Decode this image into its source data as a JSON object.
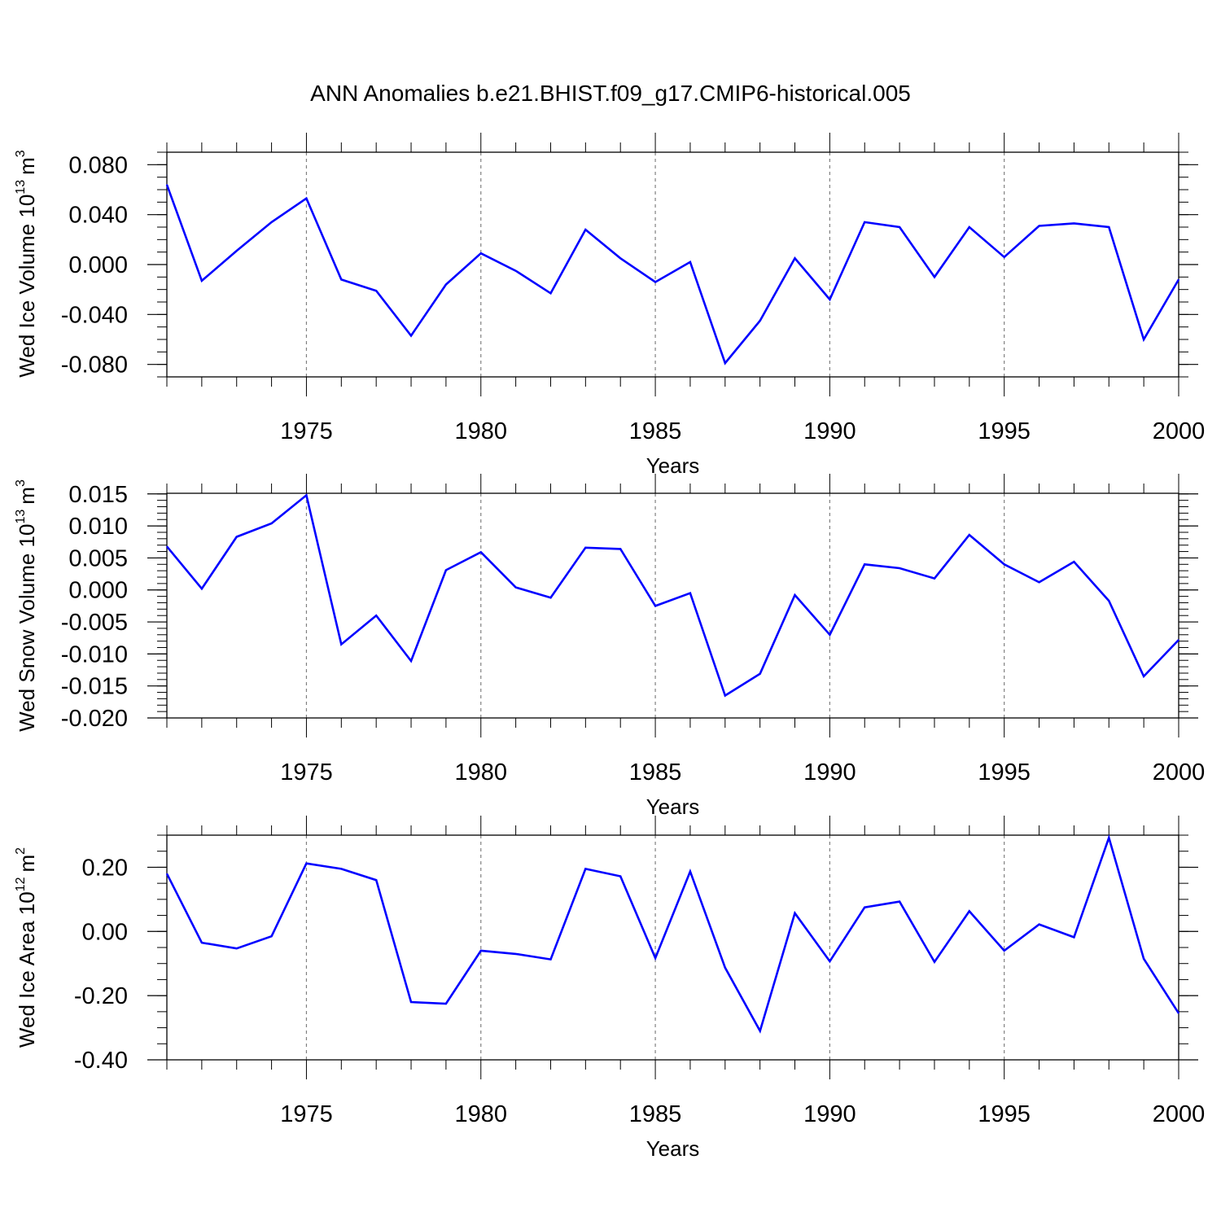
{
  "figure": {
    "title": "ANN Anomalies b.e21.BHIST.f09_g17.CMIP6-historical.005",
    "line_color": "#0000ff",
    "grid_color": "#808080"
  },
  "chart_data": [
    {
      "type": "line",
      "title": "",
      "xlabel": "Years",
      "ylabel_main": "Wed Ice Volume 10",
      "ylabel_exp": "13",
      "ylabel_unit": "m",
      "ylabel_unit_exp": "3",
      "xlim": [
        1971,
        2000
      ],
      "ylim": [
        -0.09,
        0.09
      ],
      "xticks": [
        1975,
        1980,
        1985,
        1990,
        1995,
        2000
      ],
      "xtick_labels": [
        "1975",
        "1980",
        "1985",
        "1990",
        "1995",
        "2000"
      ],
      "yticks": [
        0.08,
        0.04,
        0.0,
        -0.04,
        -0.08
      ],
      "ytick_labels": [
        "0.080",
        "0.040",
        "0.000",
        "-0.040",
        "-0.080"
      ],
      "yminor_step": 0.01,
      "x": [
        1971,
        1972,
        1973,
        1974,
        1975,
        1976,
        1977,
        1978,
        1979,
        1980,
        1981,
        1982,
        1983,
        1984,
        1985,
        1986,
        1987,
        1988,
        1989,
        1990,
        1991,
        1992,
        1993,
        1994,
        1995,
        1996,
        1997,
        1998,
        1999,
        2000
      ],
      "series": [
        {
          "name": "Wed Ice Volume",
          "values": [
            0.064,
            -0.013,
            0.011,
            0.034,
            0.053,
            -0.012,
            -0.021,
            -0.057,
            -0.016,
            0.009,
            -0.005,
            -0.023,
            0.028,
            0.005,
            -0.014,
            0.002,
            -0.079,
            -0.045,
            0.005,
            -0.028,
            0.034,
            0.03,
            -0.01,
            0.03,
            0.006,
            0.031,
            0.033,
            0.03,
            -0.06,
            -0.012
          ]
        }
      ]
    },
    {
      "type": "line",
      "title": "",
      "xlabel": "Years",
      "ylabel_main": "Wed Snow Volume 10",
      "ylabel_exp": "13",
      "ylabel_unit": "m",
      "ylabel_unit_exp": "3",
      "xlim": [
        1971,
        2000
      ],
      "ylim": [
        -0.02,
        0.0151
      ],
      "xticks": [
        1975,
        1980,
        1985,
        1990,
        1995,
        2000
      ],
      "xtick_labels": [
        "1975",
        "1980",
        "1985",
        "1990",
        "1995",
        "2000"
      ],
      "yticks": [
        0.015,
        0.01,
        0.005,
        0.0,
        -0.005,
        -0.01,
        -0.015,
        -0.02
      ],
      "ytick_labels": [
        "0.015",
        "0.010",
        "0.005",
        "0.000",
        "-0.005",
        "-0.010",
        "-0.015",
        "-0.020"
      ],
      "yminor_step": 0.001,
      "x": [
        1971,
        1972,
        1973,
        1974,
        1975,
        1976,
        1977,
        1978,
        1979,
        1980,
        1981,
        1982,
        1983,
        1984,
        1985,
        1986,
        1987,
        1988,
        1989,
        1990,
        1991,
        1992,
        1993,
        1994,
        1995,
        1996,
        1997,
        1998,
        1999,
        2000
      ],
      "series": [
        {
          "name": "Wed Snow Volume",
          "values": [
            0.0068,
            0.0002,
            0.0083,
            0.0104,
            0.0148,
            -0.0085,
            -0.004,
            -0.0111,
            0.0031,
            0.0059,
            0.0004,
            -0.0012,
            0.0066,
            0.0064,
            -0.0025,
            -0.0005,
            -0.0165,
            -0.0131,
            -0.0008,
            -0.007,
            0.004,
            0.0034,
            0.0018,
            0.0086,
            0.004,
            0.0012,
            0.0044,
            -0.0017,
            -0.0135,
            -0.0078
          ]
        }
      ]
    },
    {
      "type": "line",
      "title": "",
      "xlabel": "Years",
      "ylabel_main": "Wed Ice Area 10",
      "ylabel_exp": "12",
      "ylabel_unit": "m",
      "ylabel_unit_exp": "2",
      "xlim": [
        1971,
        2000
      ],
      "ylim": [
        -0.4,
        0.3
      ],
      "xticks": [
        1975,
        1980,
        1985,
        1990,
        1995,
        2000
      ],
      "xtick_labels": [
        "1975",
        "1980",
        "1985",
        "1990",
        "1995",
        "2000"
      ],
      "yticks": [
        0.2,
        0.0,
        -0.2,
        -0.4
      ],
      "ytick_labels": [
        "0.20",
        "0.00",
        "-0.20",
        "-0.40"
      ],
      "yminor_step": 0.05,
      "x": [
        1971,
        1972,
        1973,
        1974,
        1975,
        1976,
        1977,
        1978,
        1979,
        1980,
        1981,
        1982,
        1983,
        1984,
        1985,
        1986,
        1987,
        1988,
        1989,
        1990,
        1991,
        1992,
        1993,
        1994,
        1995,
        1996,
        1997,
        1998,
        1999,
        2000
      ],
      "series": [
        {
          "name": "Wed Ice Area",
          "values": [
            0.18,
            -0.035,
            -0.053,
            -0.015,
            0.212,
            0.195,
            0.16,
            -0.22,
            -0.225,
            -0.06,
            -0.07,
            -0.087,
            0.195,
            0.172,
            -0.083,
            0.187,
            -0.113,
            -0.31,
            0.057,
            -0.093,
            0.075,
            0.093,
            -0.095,
            0.063,
            -0.06,
            0.022,
            -0.018,
            0.292,
            -0.085,
            -0.255
          ]
        }
      ]
    }
  ]
}
